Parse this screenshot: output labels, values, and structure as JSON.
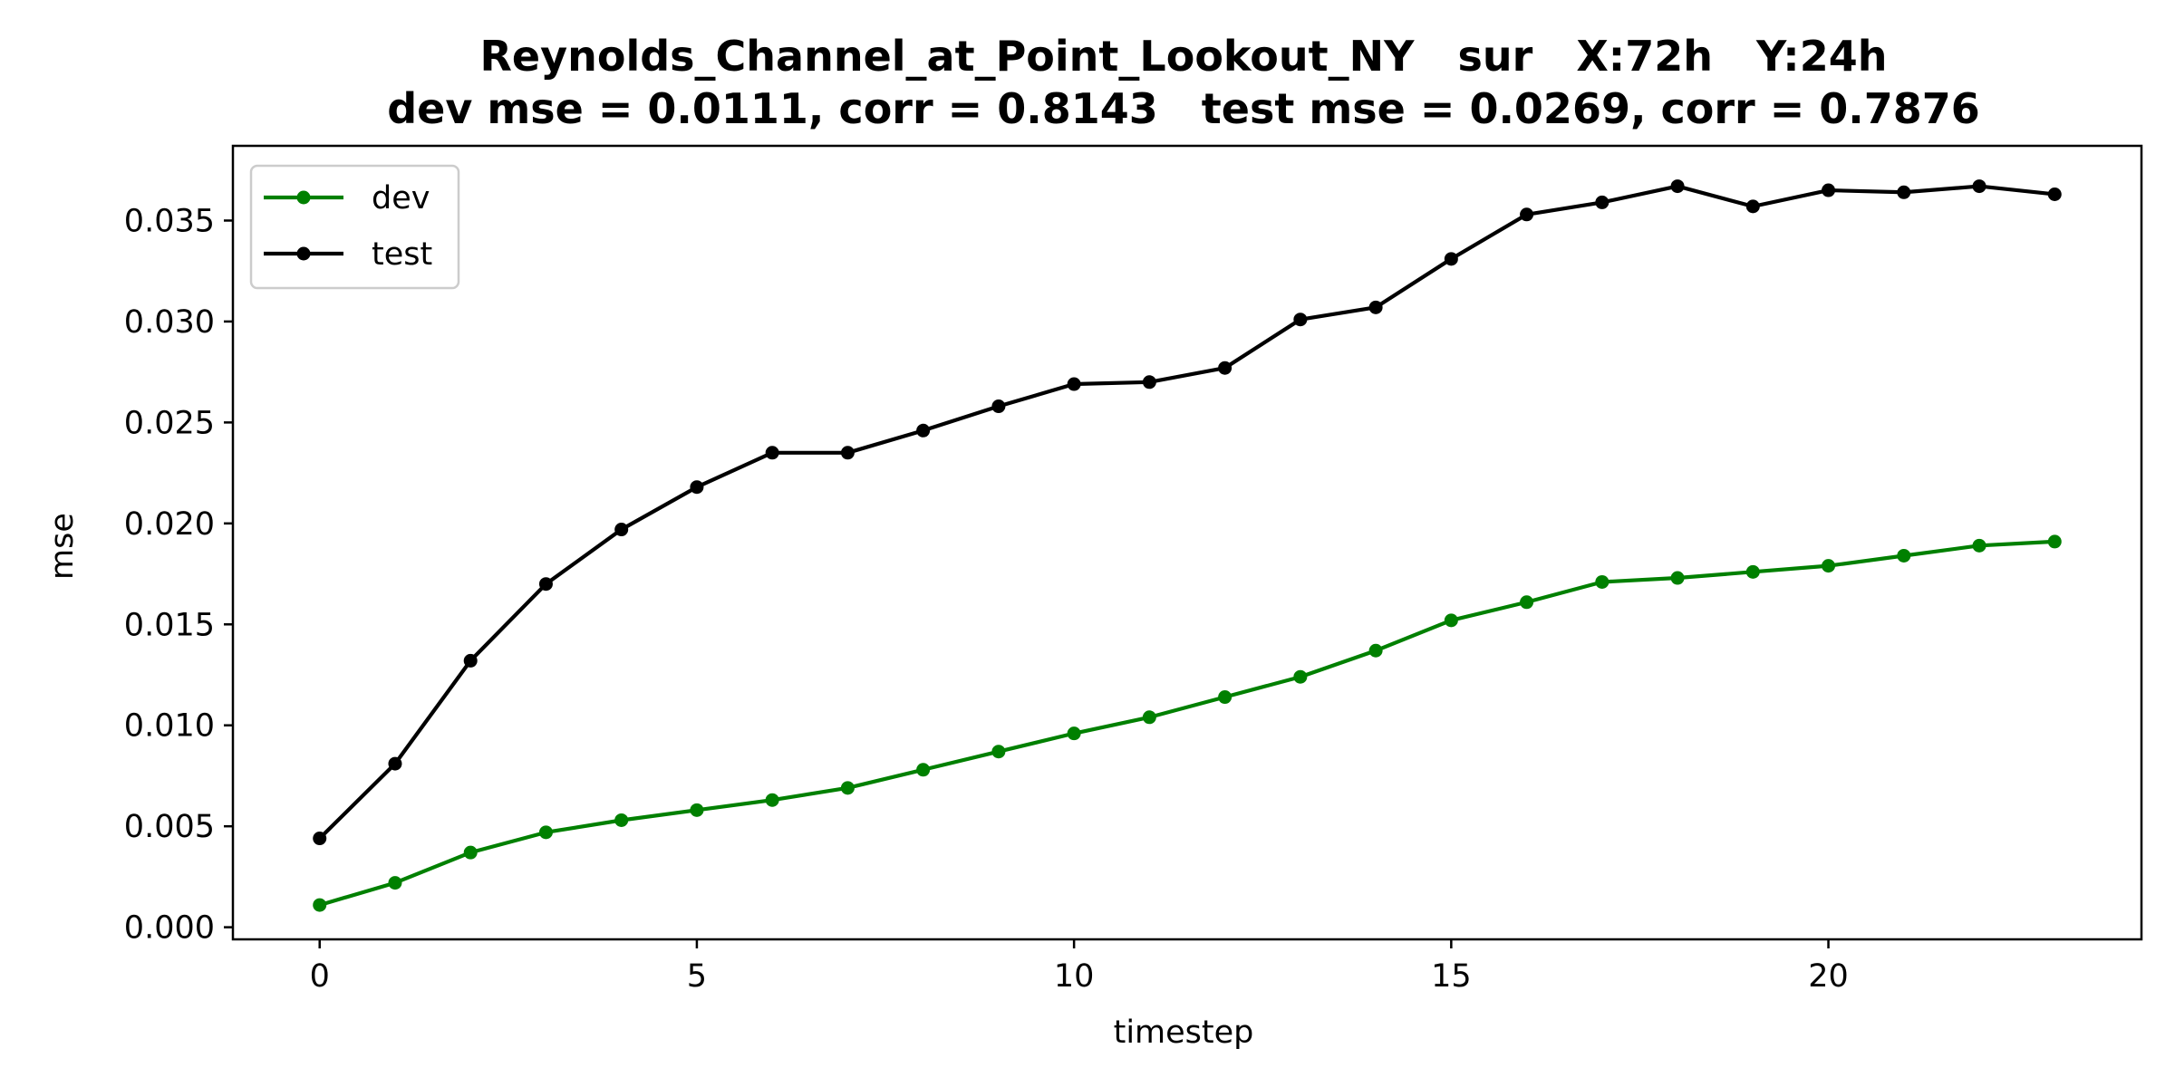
{
  "chart_data": {
    "type": "line",
    "title": "Reynolds_Channel_at_Point_Lookout_NY   sur   X:72h   Y:24h",
    "subtitle": "dev mse = 0.0111, corr = 0.8143   test mse = 0.0269, corr = 0.7876",
    "xlabel": "timestep",
    "ylabel": "mse",
    "xlim": [
      -1.15,
      24.15
    ],
    "ylim": [
      -0.0006,
      0.0387
    ],
    "xticks": [
      0,
      5,
      10,
      15,
      20
    ],
    "xtick_labels": [
      "0",
      "5",
      "10",
      "15",
      "20"
    ],
    "yticks": [
      0.0,
      0.005,
      0.01,
      0.015,
      0.02,
      0.025,
      0.03,
      0.035
    ],
    "ytick_labels": [
      "0.000",
      "0.005",
      "0.010",
      "0.015",
      "0.020",
      "0.025",
      "0.030",
      "0.035"
    ],
    "grid": false,
    "legend_position": "top-left",
    "x": [
      0,
      1,
      2,
      3,
      4,
      5,
      6,
      7,
      8,
      9,
      10,
      11,
      12,
      13,
      14,
      15,
      16,
      17,
      18,
      19,
      20,
      21,
      22,
      23
    ],
    "series": [
      {
        "name": "dev",
        "color": "#008000",
        "values": [
          0.0011,
          0.0022,
          0.0037,
          0.0047,
          0.0053,
          0.0058,
          0.0063,
          0.0069,
          0.0078,
          0.0087,
          0.0096,
          0.0104,
          0.0114,
          0.0124,
          0.0137,
          0.0152,
          0.0161,
          0.0171,
          0.0173,
          0.0176,
          0.0179,
          0.0184,
          0.0189,
          0.0191
        ]
      },
      {
        "name": "test",
        "color": "#000000",
        "values": [
          0.0044,
          0.0081,
          0.0132,
          0.017,
          0.0197,
          0.0218,
          0.0235,
          0.0235,
          0.0246,
          0.0258,
          0.0269,
          0.027,
          0.0277,
          0.0301,
          0.0307,
          0.0331,
          0.0353,
          0.0359,
          0.0367,
          0.0357,
          0.0365,
          0.0364,
          0.0367,
          0.0363
        ]
      }
    ]
  }
}
